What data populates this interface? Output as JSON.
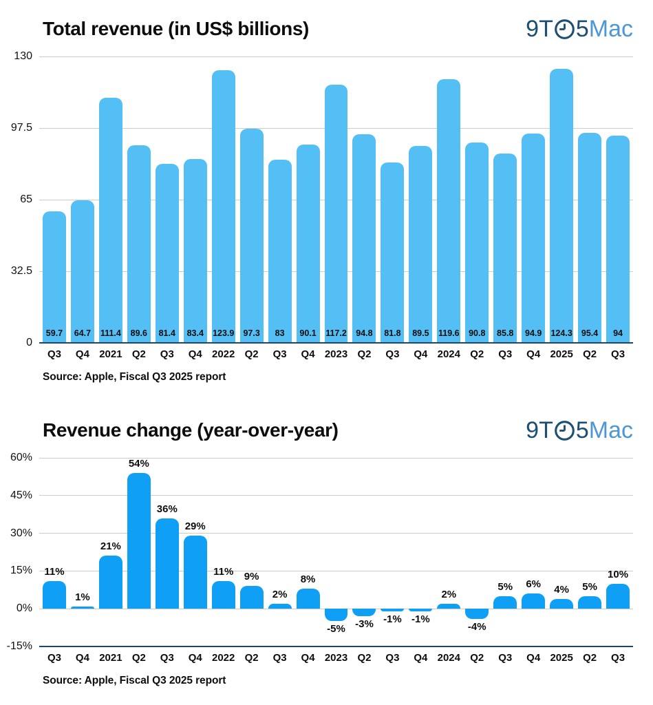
{
  "logo": {
    "left": "9T",
    "digit": "5",
    "right": "Mac",
    "dark_color": "#1d4f72",
    "light_color": "#4e97d3"
  },
  "colors": {
    "bar_top_chart": "#54bff5",
    "bar_bottom_chart": "#0fa0f5",
    "axis_line": "#1a476b",
    "gridline": "#cbcbcb",
    "text": "#0d0d0d"
  },
  "chart_data": [
    {
      "type": "bar",
      "title": "Total revenue (in US$ billions)",
      "source": "Source: Apple, Fiscal Q3 2025 report",
      "categories": [
        "Q3",
        "Q4",
        "2021",
        "Q2",
        "Q3",
        "Q4",
        "2022",
        "Q2",
        "Q3",
        "Q4",
        "2023",
        "Q2",
        "Q3",
        "Q4",
        "2024",
        "Q2",
        "Q3",
        "Q4",
        "2025",
        "Q2",
        "Q3"
      ],
      "values": [
        59.7,
        64.7,
        111.4,
        89.6,
        81.4,
        83.4,
        123.9,
        97.3,
        83,
        90.1,
        117.2,
        94.8,
        81.8,
        89.5,
        119.6,
        90.8,
        85.8,
        94.9,
        124.3,
        95.4,
        94
      ],
      "value_labels": [
        "59.7",
        "64.7",
        "111.4",
        "89.6",
        "81.4",
        "83.4",
        "123.9",
        "97.3",
        "83",
        "90.1",
        "117.2",
        "94.8",
        "81.8",
        "89.5",
        "119.6",
        "90.8",
        "85.8",
        "94.9",
        "124.3",
        "95.4",
        "94"
      ],
      "ylim": [
        0,
        130
      ],
      "yticks": [
        130,
        97.5,
        65,
        32.5,
        0
      ],
      "ytick_labels": [
        "130",
        "97.5",
        "65",
        "32.5",
        "0"
      ],
      "bar_color": "#54bff5",
      "grid": true,
      "legend": "none",
      "value_label_position": "inside-bottom"
    },
    {
      "type": "bar",
      "title": "Revenue change (year-over-year)",
      "source": "Source: Apple, Fiscal Q3 2025 report",
      "categories": [
        "Q3",
        "Q4",
        "2021",
        "Q2",
        "Q3",
        "Q4",
        "2022",
        "Q2",
        "Q3",
        "Q4",
        "2023",
        "Q2",
        "Q3",
        "Q4",
        "2024",
        "Q2",
        "Q3",
        "Q4",
        "2025",
        "Q2",
        "Q3"
      ],
      "values": [
        11,
        1,
        21,
        54,
        36,
        29,
        11,
        9,
        2,
        8,
        -5,
        -3,
        -1,
        -1,
        2,
        -4,
        5,
        6,
        4,
        5,
        10
      ],
      "value_labels": [
        "11%",
        "1%",
        "21%",
        "54%",
        "36%",
        "29%",
        "11%",
        "9%",
        "2%",
        "8%",
        "-5%",
        "-3%",
        "-1%",
        "-1%",
        "2%",
        "-4%",
        "5%",
        "6%",
        "4%",
        "5%",
        "10%"
      ],
      "ylim": [
        -15,
        60
      ],
      "yticks": [
        60,
        45,
        30,
        15,
        0,
        -15
      ],
      "ytick_labels": [
        "60%",
        "45%",
        "30%",
        "15%",
        "0%",
        "-15%"
      ],
      "bar_color": "#0fa0f5",
      "grid": true,
      "legend": "none",
      "value_label_position": "outside-end"
    }
  ]
}
